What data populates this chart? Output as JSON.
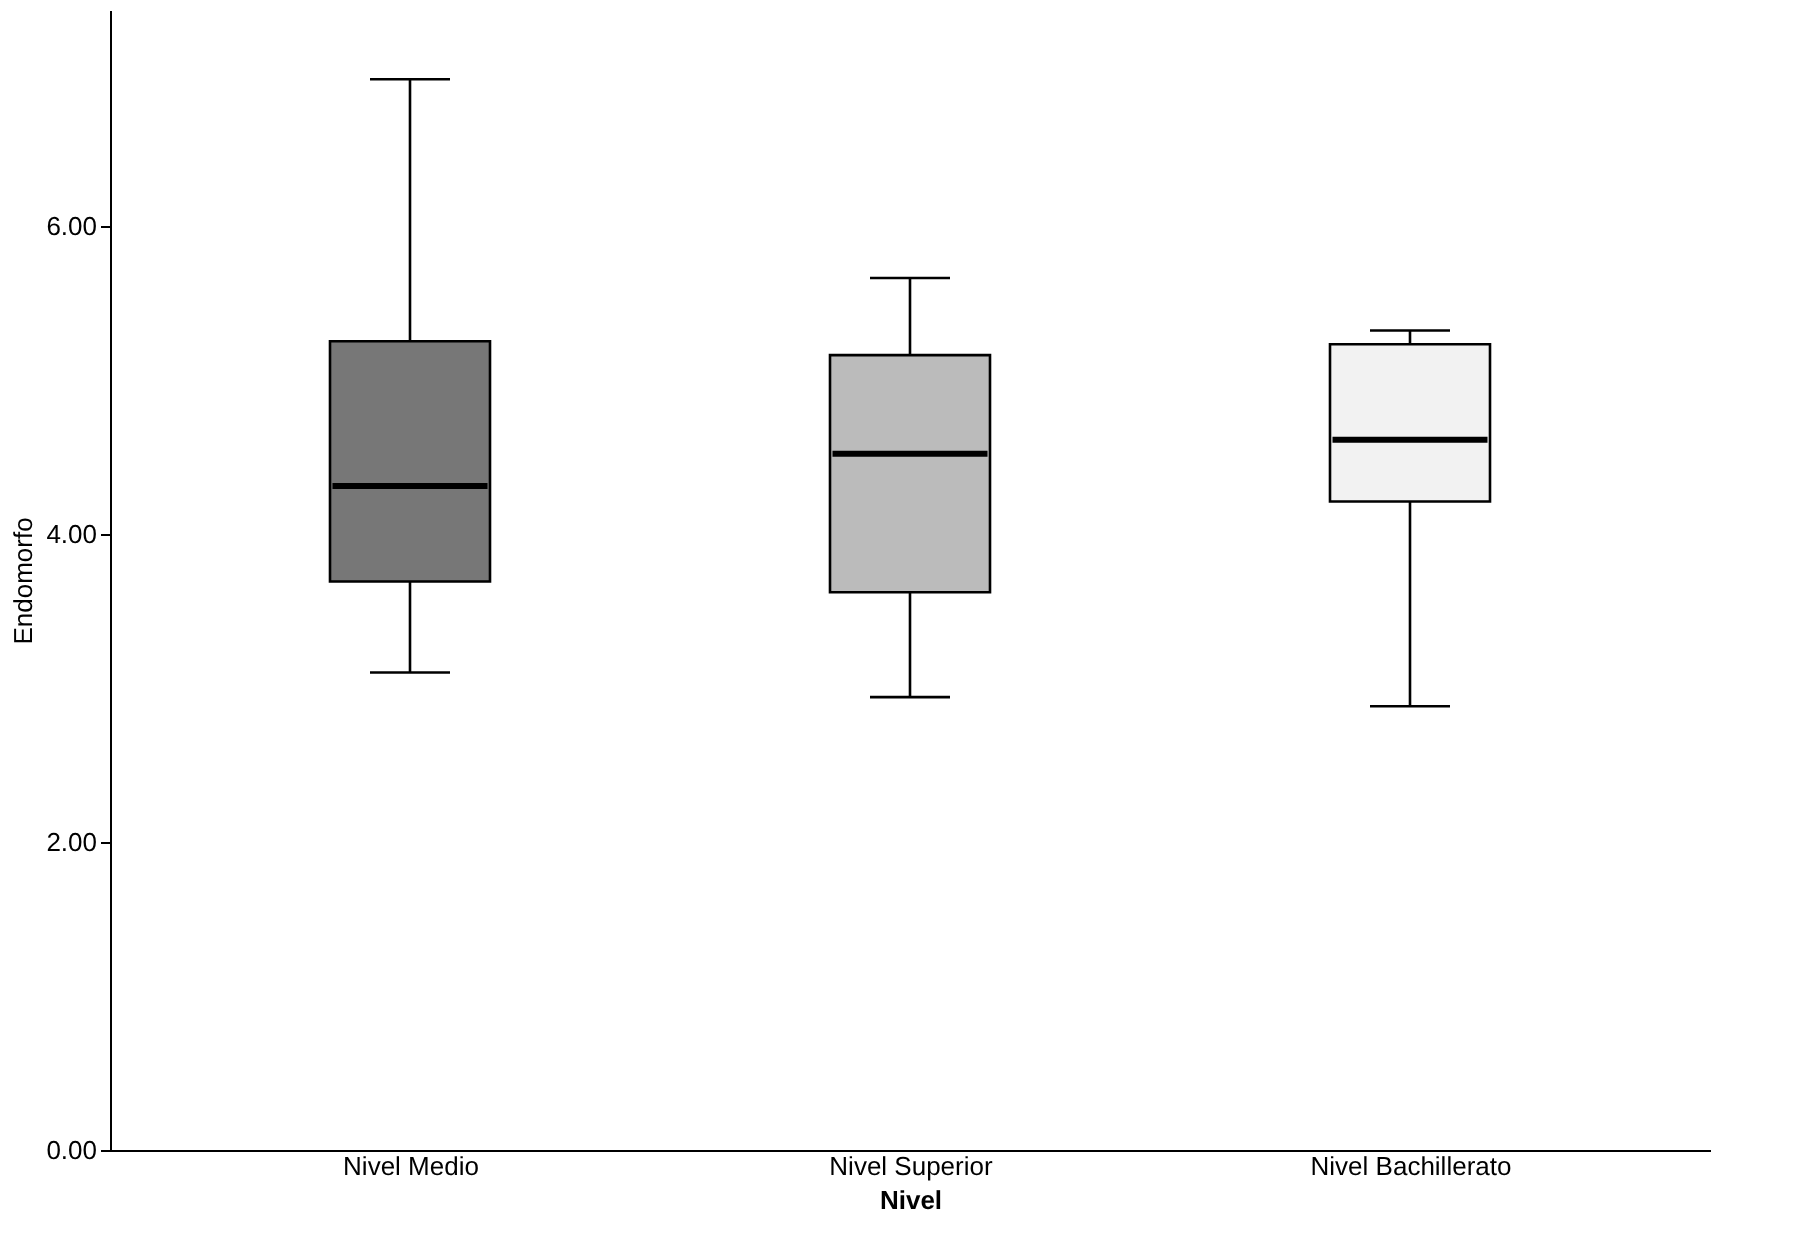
{
  "chart_data": {
    "type": "box",
    "xlabel": "Nivel",
    "ylabel": "Endomorfo",
    "categories": [
      "Nivel Medio",
      "Nivel Superior",
      "Nivel Bachillerato"
    ],
    "colors": [
      "#777777",
      "#bbbbbb",
      "#f2f2f2"
    ],
    "boxes": [
      {
        "low": 3.1,
        "q1": 3.69,
        "median": 4.31,
        "q3": 5.25,
        "high": 6.95
      },
      {
        "low": 2.94,
        "q1": 3.62,
        "median": 4.52,
        "q3": 5.16,
        "high": 5.66
      },
      {
        "low": 2.88,
        "q1": 4.21,
        "median": 4.61,
        "q3": 5.23,
        "high": 5.32
      }
    ],
    "ylim": [
      0,
      7.4
    ],
    "yticks": [
      {
        "value": 0,
        "label": "0.00"
      },
      {
        "value": 2,
        "label": "2.00"
      },
      {
        "value": 4,
        "label": "4.00"
      },
      {
        "value": 6,
        "label": "6.00"
      }
    ],
    "grid": false
  }
}
